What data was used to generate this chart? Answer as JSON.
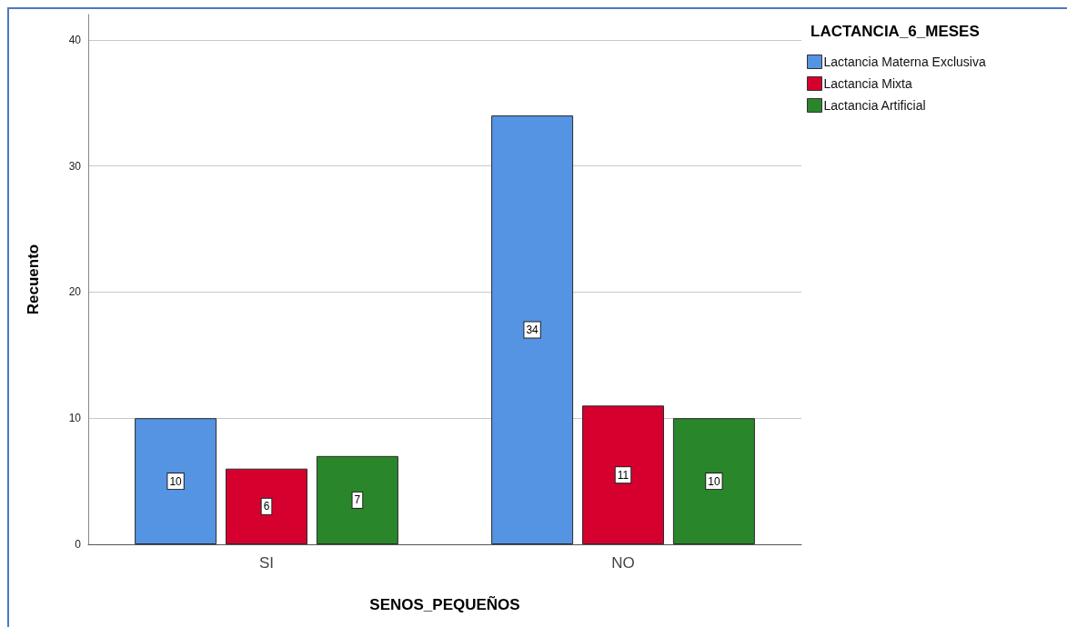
{
  "chart_data": {
    "type": "bar",
    "xlabel": "SENOS_PEQUEÑOS",
    "ylabel": "Recuento",
    "legend_title": "LACTANCIA_6_MESES",
    "categories": [
      "SI",
      "NO"
    ],
    "series": [
      {
        "name": "Lactancia Materna Exclusiva",
        "color": "#5593e3",
        "values": [
          10,
          34
        ]
      },
      {
        "name": "Lactancia Mixta",
        "color": "#d6002f",
        "values": [
          6,
          11
        ]
      },
      {
        "name": "Lactancia Artificial",
        "color": "#2a862a",
        "values": [
          7,
          10
        ]
      }
    ],
    "ylim": [
      0,
      42
    ],
    "yticks": [
      0,
      10,
      20,
      30,
      40
    ],
    "grid": "y",
    "legend": "top right",
    "data_labels": true
  }
}
